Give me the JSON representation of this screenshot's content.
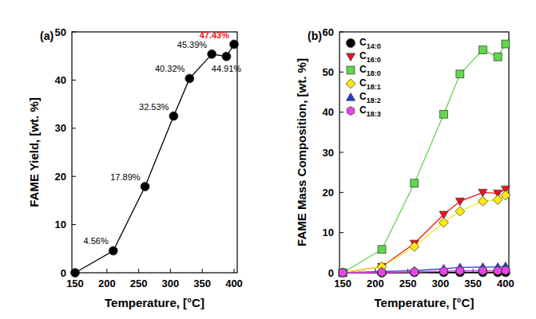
{
  "chart_data": [
    {
      "type": "line",
      "title": "(a)",
      "x_label": "Temperature, [°C]",
      "y_label": "FAME Yield, [wt. %]",
      "x": [
        150,
        210,
        260,
        305,
        330,
        365,
        388,
        400
      ],
      "values": [
        0,
        4.56,
        17.89,
        32.53,
        40.32,
        45.39,
        44.91,
        47.43
      ],
      "value_labels": [
        null,
        "4.56%",
        "17.89%",
        "32.53%",
        "40.32%",
        "45.39%",
        "44.91%",
        "47.43%"
      ],
      "color": "#000000",
      "marker": "circle",
      "line_style": "solid",
      "data_labels": true,
      "xlim": [
        145,
        405
      ],
      "xticks": [
        150,
        200,
        250,
        300,
        350,
        400
      ],
      "ylim": [
        0,
        50
      ],
      "yticks": [
        0,
        10,
        20,
        30,
        40,
        50
      ],
      "grid": false
    },
    {
      "type": "line",
      "title": "(b)",
      "x_label": "Temperature, [°C]",
      "y_label": "FAME Mass Composition, [wt. %]",
      "x": [
        150,
        210,
        260,
        305,
        330,
        365,
        388,
        400
      ],
      "series": [
        {
          "name": "C14:0",
          "color": "#000000",
          "marker": "circle",
          "line_style": "solid",
          "values": [
            0,
            0,
            0.1,
            0.1,
            0.1,
            0.1,
            0.1,
            0.1
          ]
        },
        {
          "name": "C16:0",
          "color": "#e8141a",
          "marker": "triangle-down",
          "line_style": "solid",
          "values": [
            0,
            1.5,
            7.3,
            14.5,
            17.8,
            20,
            19.8,
            20.8
          ]
        },
        {
          "name": "C18:0",
          "color": "#5fd84a",
          "marker": "square",
          "line_style": "solid",
          "values": [
            0,
            5.8,
            22.3,
            39.5,
            49.5,
            55.5,
            53.8,
            57
          ]
        },
        {
          "name": "C18:1",
          "color": "#fde910",
          "marker": "diamond",
          "line_style": "solid",
          "values": [
            0,
            1.5,
            6.5,
            12.5,
            15.3,
            17.8,
            18.2,
            19.3
          ]
        },
        {
          "name": "C18:2",
          "color": "#1f3ecf",
          "marker": "triangle-up",
          "line_style": "solid",
          "values": [
            0,
            0.3,
            0.5,
            1,
            1.3,
            1.4,
            1.4,
            1.6
          ]
        },
        {
          "name": "C18:3",
          "color": "#e845e8",
          "marker": "hexagon",
          "line_style": "solid",
          "values": [
            0,
            0.1,
            0.2,
            0.4,
            0.5,
            0.5,
            0.5,
            0.6
          ]
        }
      ],
      "legend": "upper left",
      "xlim": [
        145,
        405
      ],
      "xticks": [
        150,
        200,
        250,
        300,
        350,
        400
      ],
      "ylim": [
        0,
        60
      ],
      "yticks": [
        0,
        10,
        20,
        30,
        40,
        50,
        60
      ],
      "grid": false
    }
  ]
}
